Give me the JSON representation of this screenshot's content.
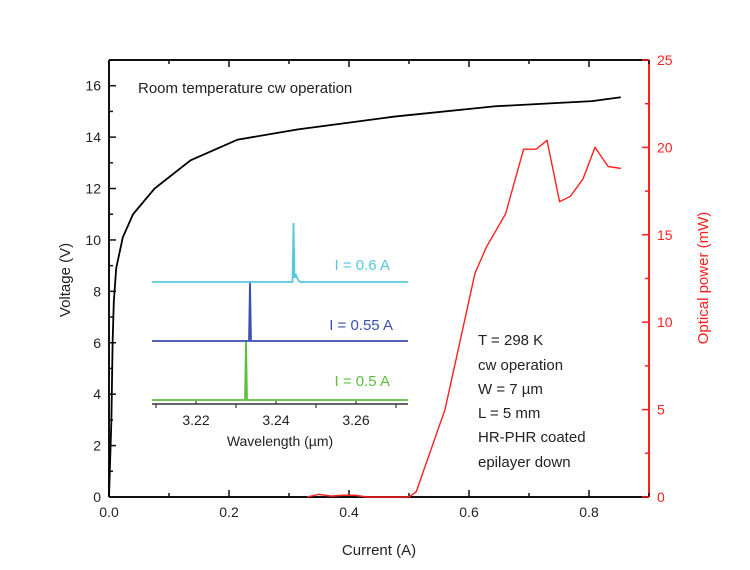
{
  "chart_data": [
    {
      "type": "line",
      "title": "",
      "annotation_top": "Room temperature cw operation",
      "annotation_box": [
        "T = 298 K",
        "cw operation",
        "W = 7 µm",
        "L = 5 mm",
        "HR-PHR coated",
        "epilayer down"
      ],
      "xlabel": "Current (A)",
      "ylabel_left": "Voltage (V)",
      "ylabel_right": "Optical power (mW)",
      "xlim": [
        0,
        0.9
      ],
      "ylim_left": [
        0,
        17
      ],
      "ylim_right": [
        0,
        25
      ],
      "x_ticks": [
        "0.0",
        "0.2",
        "0.4",
        "0.6",
        "0.8"
      ],
      "y_left_ticks": [
        "0",
        "2",
        "4",
        "6",
        "8",
        "10",
        "12",
        "14",
        "16"
      ],
      "y_right_ticks": [
        "0",
        "5",
        "10",
        "15",
        "20",
        "25"
      ],
      "grid": false,
      "colors": {
        "voltage": "#000000",
        "power": "#ff2020",
        "right_axis": "#ff2020"
      },
      "series": [
        {
          "axis": "left",
          "x": [
            0.0,
            0.004,
            0.006,
            0.008,
            0.012,
            0.023,
            0.04,
            0.076,
            0.136,
            0.214,
            0.315,
            0.476,
            0.644,
            0.805,
            0.853
          ],
          "y": [
            0.0,
            3.0,
            6.0,
            7.6,
            8.9,
            10.1,
            11.0,
            12.0,
            13.1,
            13.9,
            14.3,
            14.8,
            15.2,
            15.4,
            15.55
          ]
        },
        {
          "axis": "right",
          "x": [
            0.33,
            0.35,
            0.37,
            0.39,
            0.41,
            0.43,
            0.45,
            0.5,
            0.512,
            0.56,
            0.61,
            0.629,
            0.661,
            0.691,
            0.712,
            0.73,
            0.751,
            0.769,
            0.79,
            0.81,
            0.832,
            0.853
          ],
          "y": [
            0.0,
            0.15,
            0.05,
            0.1,
            0.1,
            0.0,
            0.0,
            0.0,
            0.3,
            5.0,
            12.8,
            14.3,
            16.2,
            19.9,
            19.9,
            20.4,
            16.9,
            17.2,
            18.2,
            20.0,
            18.9,
            18.8
          ]
        }
      ]
    },
    {
      "type": "line",
      "inset": true,
      "xlabel": "Wavelength (µm)",
      "xlim": [
        3.209,
        3.273
      ],
      "x_ticks": [
        "3.22",
        "3.24",
        "3.26"
      ],
      "series": [
        {
          "name": "I = 0.5 A",
          "color": "#5cbf3a",
          "offset": 0,
          "peak_x": 3.2325,
          "peak_height": 1.0
        },
        {
          "name": "I = 0.55 A",
          "color": "#3a4fb0",
          "offset": 1,
          "peak_x": 3.2335,
          "peak_height": 1.0
        },
        {
          "name": "I = 0.6 A",
          "color": "#55c8dc",
          "offset": 2,
          "peak_x": 3.2445,
          "peak_height": 1.0
        }
      ]
    }
  ]
}
